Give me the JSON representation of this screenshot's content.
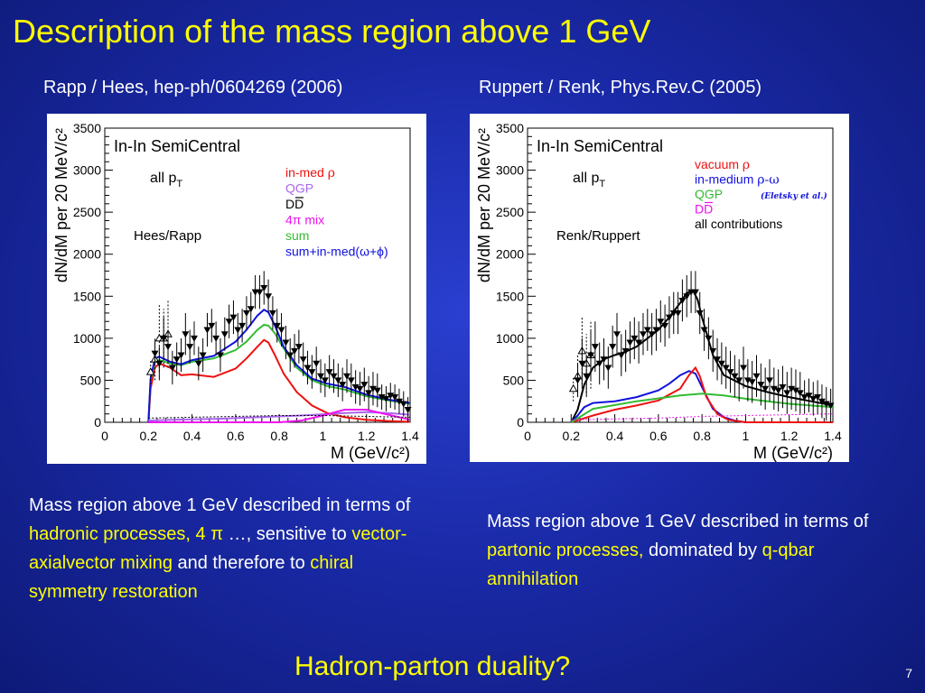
{
  "slide": {
    "title": "Description of the mass region above 1 GeV",
    "page_number": "7",
    "question": "Hadron-parton duality?"
  },
  "left": {
    "caption": "Rapp / Hees, hep-ph/0604269 (2006)",
    "text": {
      "p1": "Mass region above 1 GeV described in terms of ",
      "h1": "hadronic processes, 4 π",
      "p2": " …, sensitive to ",
      "h2": "vector-axialvector mixing",
      "p3": " and therefore to ",
      "h3": "chiral symmetry restoration"
    }
  },
  "right": {
    "caption": "Ruppert / Renk, Phys.Rev.C (2005)",
    "text": {
      "p1": "Mass region above 1 GeV described in terms of ",
      "h1": "partonic processes,",
      "p2": " dominated by ",
      "h2": "q-qbar annihilation"
    }
  },
  "colors": {
    "title": "#ffff00",
    "highlight": "#ffff00",
    "red": "#ee1111",
    "blue": "#1111dd",
    "green": "#33bb33",
    "magenta": "#ee11ee",
    "violet": "#aa66ee",
    "black": "#000000"
  },
  "chart_data": [
    {
      "type": "line",
      "title": "In-In SemiCentral",
      "xlabel": "M (GeV/c²)",
      "ylabel": "dN/dM per 20 MeV/c²",
      "xlim": [
        0,
        1.4
      ],
      "ylim": [
        0,
        3500
      ],
      "xticks": [
        "0",
        "0.2",
        "0.4",
        "0.6",
        "0.8",
        "1",
        "1.2",
        "1.4"
      ],
      "yticks": [
        "0",
        "500",
        "1000",
        "1500",
        "2000",
        "2500",
        "3000",
        "3500"
      ],
      "annotations": {
        "pt": "all p",
        "pt_sub": "T",
        "model": "Hees/Rapp"
      },
      "legend_position": "top-right",
      "legend": [
        {
          "label": "in-med ",
          "greek": "ρ",
          "color": "#ee1111"
        },
        {
          "label": "QGP",
          "greek": "",
          "color": "#aa66ee"
        },
        {
          "label": "DD",
          "greek": "",
          "color": "#000000"
        },
        {
          "label": "4π mix",
          "greek": "",
          "color": "#ee11ee"
        },
        {
          "label": "sum",
          "greek": "",
          "color": "#33bb33"
        },
        {
          "label": "sum+in-med(ω+ϕ)",
          "greek": "",
          "color": "#1111dd"
        }
      ],
      "series": [
        {
          "name": "in-med ρ",
          "color": "#ee1111",
          "x": [
            0.2,
            0.21,
            0.23,
            0.25,
            0.3,
            0.35,
            0.4,
            0.5,
            0.6,
            0.65,
            0.7,
            0.73,
            0.75,
            0.78,
            0.82,
            0.88,
            0.95,
            1.02,
            1.1,
            1.2,
            1.3,
            1.4
          ],
          "y": [
            0,
            400,
            650,
            700,
            650,
            560,
            570,
            540,
            640,
            760,
            900,
            980,
            950,
            800,
            580,
            360,
            200,
            110,
            60,
            30,
            15,
            5
          ]
        },
        {
          "name": "sum",
          "color": "#33bb33",
          "x": [
            0.2,
            0.21,
            0.23,
            0.25,
            0.3,
            0.35,
            0.4,
            0.5,
            0.6,
            0.65,
            0.7,
            0.73,
            0.75,
            0.78,
            0.82,
            0.88,
            0.95,
            1.02,
            1.1,
            1.2,
            1.3,
            1.4
          ],
          "y": [
            0,
            500,
            720,
            740,
            700,
            680,
            720,
            760,
            860,
            960,
            1100,
            1160,
            1150,
            1060,
            880,
            650,
            500,
            430,
            390,
            310,
            260,
            220
          ]
        },
        {
          "name": "sum+in-med(ω+ϕ)",
          "color": "#1111dd",
          "x": [
            0.2,
            0.21,
            0.23,
            0.25,
            0.3,
            0.35,
            0.4,
            0.5,
            0.6,
            0.65,
            0.7,
            0.73,
            0.75,
            0.78,
            0.82,
            0.88,
            0.95,
            1.02,
            1.1,
            1.2,
            1.3,
            1.4
          ],
          "y": [
            0,
            520,
            760,
            780,
            720,
            690,
            740,
            790,
            960,
            1100,
            1270,
            1340,
            1310,
            1150,
            900,
            680,
            520,
            460,
            420,
            330,
            270,
            230
          ]
        },
        {
          "name": "QGP",
          "color": "#aa66ee",
          "x": [
            0.2,
            0.3,
            0.5,
            0.7,
            0.9,
            1.1,
            1.2,
            1.3,
            1.4
          ],
          "y": [
            20,
            30,
            40,
            60,
            80,
            110,
            120,
            110,
            90
          ]
        },
        {
          "name": "4π mix",
          "color": "#ee11ee",
          "x": [
            0.2,
            0.8,
            0.9,
            1.0,
            1.1,
            1.2,
            1.3,
            1.4
          ],
          "y": [
            0,
            0,
            20,
            80,
            150,
            150,
            90,
            30
          ]
        },
        {
          "name": "DD",
          "color": "#000000",
          "x": [
            0.2,
            0.4,
            0.6,
            0.8,
            1.0,
            1.2,
            1.4
          ],
          "y": [
            50,
            60,
            70,
            80,
            80,
            70,
            60
          ]
        }
      ],
      "points_filled": {
        "x": [
          0.23,
          0.25,
          0.27,
          0.29,
          0.31,
          0.33,
          0.35,
          0.37,
          0.39,
          0.41,
          0.43,
          0.45,
          0.47,
          0.49,
          0.51,
          0.53,
          0.55,
          0.57,
          0.59,
          0.61,
          0.63,
          0.65,
          0.67,
          0.69,
          0.71,
          0.73,
          0.75,
          0.77,
          0.79,
          0.81,
          0.83,
          0.85,
          0.87,
          0.89,
          0.91,
          0.93,
          0.95,
          0.97,
          0.99,
          1.01,
          1.03,
          1.05,
          1.07,
          1.09,
          1.11,
          1.13,
          1.15,
          1.17,
          1.19,
          1.21,
          1.23,
          1.25,
          1.27,
          1.29,
          1.31,
          1.33,
          1.35,
          1.37,
          1.39
        ],
        "y": [
          820,
          700,
          1000,
          900,
          650,
          750,
          800,
          1050,
          900,
          1000,
          700,
          800,
          1100,
          1150,
          1000,
          800,
          1050,
          1200,
          1250,
          1100,
          1150,
          1300,
          1350,
          1550,
          1550,
          1600,
          1500,
          1300,
          1150,
          1100,
          950,
          800,
          850,
          900,
          750,
          650,
          600,
          700,
          550,
          500,
          600,
          550,
          500,
          450,
          550,
          500,
          420,
          400,
          450,
          350,
          400,
          380,
          300,
          280,
          320,
          300,
          250,
          220,
          150
        ],
        "err": [
          150,
          200,
          250,
          200,
          200,
          200,
          200,
          250,
          200,
          200,
          200,
          200,
          200,
          200,
          200,
          200,
          200,
          200,
          200,
          200,
          200,
          200,
          200,
          200,
          200,
          200,
          200,
          200,
          200,
          200,
          200,
          200,
          200,
          200,
          200,
          200,
          200,
          200,
          200,
          200,
          200,
          200,
          200,
          200,
          200,
          200,
          200,
          200,
          200,
          200,
          200,
          200,
          150,
          150,
          150,
          150,
          150,
          150,
          150
        ]
      },
      "points_open": {
        "x": [
          0.21,
          0.23,
          0.25,
          0.27,
          0.29
        ],
        "y": [
          600,
          750,
          1000,
          1000,
          1050
        ],
        "err": [
          150,
          250,
          400,
          350,
          400
        ]
      }
    },
    {
      "type": "line",
      "title": "In-In SemiCentral",
      "xlabel": "M (GeV/c²)",
      "ylabel": "dN/dM per 20 MeV/c²",
      "xlim": [
        0,
        1.4
      ],
      "ylim": [
        0,
        3500
      ],
      "xticks": [
        "0",
        "0.2",
        "0.4",
        "0.6",
        "0.8",
        "1",
        "1.2",
        "1.4"
      ],
      "yticks": [
        "0",
        "500",
        "1000",
        "1500",
        "2000",
        "2500",
        "3000",
        "3500"
      ],
      "annotations": {
        "pt": "all p",
        "pt_sub": "T",
        "model": "Renk/Ruppert",
        "eletsky": "(Eletsky et al.)"
      },
      "legend_position": "top-right",
      "legend": [
        {
          "label": "vacuum ",
          "greek": "ρ",
          "color": "#ee1111"
        },
        {
          "label": "in-medium ",
          "greek": "ρ-ω",
          "color": "#1111dd"
        },
        {
          "label": "QGP",
          "greek": "",
          "color": "#33bb33"
        },
        {
          "label": "DD",
          "greek": "",
          "color": "#ee11ee"
        },
        {
          "label": "all contributions",
          "greek": "",
          "color": "#000000"
        }
      ],
      "series": [
        {
          "name": "all contributions",
          "color": "#000000",
          "x": [
            0.2,
            0.23,
            0.26,
            0.3,
            0.35,
            0.4,
            0.45,
            0.5,
            0.55,
            0.6,
            0.65,
            0.7,
            0.73,
            0.76,
            0.78,
            0.8,
            0.85,
            0.9,
            1.0,
            1.1,
            1.2,
            1.3,
            1.4
          ],
          "y": [
            0,
            150,
            450,
            650,
            750,
            800,
            840,
            900,
            1000,
            1100,
            1250,
            1420,
            1540,
            1560,
            1460,
            1250,
            800,
            560,
            430,
            360,
            300,
            250,
            200
          ]
        },
        {
          "name": "in-medium ρ-ω",
          "color": "#1111dd",
          "x": [
            0.2,
            0.23,
            0.26,
            0.3,
            0.4,
            0.5,
            0.6,
            0.65,
            0.7,
            0.74,
            0.77,
            0.8,
            0.85,
            0.9,
            0.95,
            1.0,
            1.1,
            1.2,
            1.4
          ],
          "y": [
            0,
            80,
            180,
            230,
            250,
            300,
            380,
            460,
            560,
            610,
            580,
            420,
            160,
            60,
            20,
            0,
            0,
            0,
            0
          ]
        },
        {
          "name": "vacuum ρ",
          "color": "#ee1111",
          "x": [
            0.2,
            0.3,
            0.4,
            0.5,
            0.6,
            0.7,
            0.74,
            0.77,
            0.79,
            0.82,
            0.87,
            0.92,
            1.0,
            1.1,
            1.2,
            1.4
          ],
          "y": [
            0,
            80,
            150,
            200,
            260,
            400,
            560,
            650,
            550,
            300,
            100,
            30,
            0,
            0,
            0,
            0
          ]
        },
        {
          "name": "QGP",
          "color": "#33bb33",
          "x": [
            0.2,
            0.3,
            0.5,
            0.7,
            0.8,
            0.9,
            1.0,
            1.1,
            1.2,
            1.3,
            1.4
          ],
          "y": [
            0,
            160,
            250,
            320,
            340,
            320,
            280,
            250,
            220,
            200,
            180
          ]
        },
        {
          "name": "DD",
          "color": "#ee11ee",
          "x": [
            0.2,
            0.4,
            0.6,
            0.8,
            1.0,
            1.2,
            1.4
          ],
          "y": [
            30,
            40,
            50,
            70,
            80,
            90,
            100
          ]
        }
      ],
      "points_filled": {
        "x": [
          0.23,
          0.25,
          0.27,
          0.29,
          0.31,
          0.33,
          0.35,
          0.37,
          0.39,
          0.41,
          0.43,
          0.45,
          0.47,
          0.49,
          0.51,
          0.53,
          0.55,
          0.57,
          0.59,
          0.61,
          0.63,
          0.65,
          0.67,
          0.69,
          0.71,
          0.73,
          0.75,
          0.77,
          0.79,
          0.81,
          0.83,
          0.85,
          0.87,
          0.89,
          0.91,
          0.93,
          0.95,
          0.97,
          0.99,
          1.01,
          1.03,
          1.05,
          1.07,
          1.09,
          1.11,
          1.13,
          1.15,
          1.17,
          1.19,
          1.21,
          1.23,
          1.25,
          1.27,
          1.29,
          1.31,
          1.33,
          1.35,
          1.37,
          1.39
        ],
        "y": [
          500,
          700,
          550,
          800,
          900,
          700,
          750,
          650,
          900,
          1050,
          800,
          850,
          950,
          1000,
          950,
          1050,
          1100,
          1050,
          1100,
          1200,
          1150,
          1250,
          1300,
          1300,
          1450,
          1500,
          1550,
          1550,
          1300,
          1100,
          1000,
          850,
          750,
          700,
          650,
          600,
          550,
          500,
          650,
          500,
          480,
          550,
          450,
          400,
          500,
          400,
          380,
          420,
          350,
          400,
          380,
          350,
          300,
          320,
          280,
          300,
          250,
          220,
          200
        ],
        "err": [
          200,
          300,
          250,
          300,
          300,
          250,
          250,
          250,
          250,
          250,
          250,
          250,
          250,
          250,
          250,
          250,
          250,
          250,
          250,
          250,
          250,
          250,
          250,
          250,
          250,
          250,
          250,
          250,
          250,
          250,
          250,
          250,
          250,
          250,
          250,
          250,
          250,
          250,
          250,
          250,
          250,
          250,
          250,
          250,
          250,
          250,
          250,
          250,
          250,
          250,
          250,
          250,
          200,
          200,
          200,
          200,
          200,
          200,
          200
        ]
      },
      "points_open": {
        "x": [
          0.21,
          0.23,
          0.25,
          0.27,
          0.29
        ],
        "y": [
          400,
          550,
          850,
          700,
          800
        ],
        "err": [
          150,
          250,
          400,
          350,
          400
        ]
      }
    }
  ]
}
